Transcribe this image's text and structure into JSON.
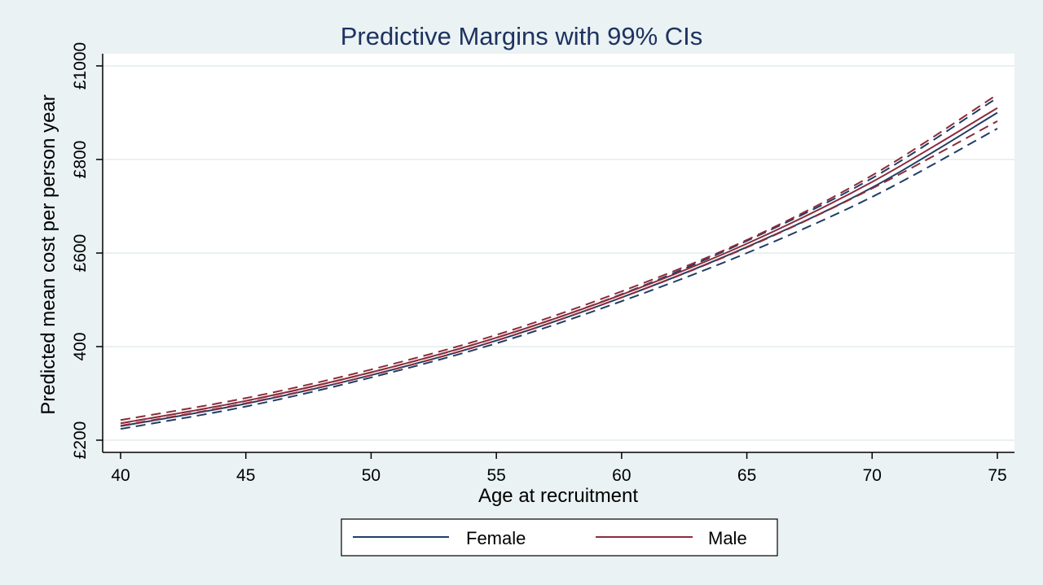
{
  "chart_data": {
    "type": "line",
    "title": "Predictive Margins with 99% CIs",
    "xlabel": "Age at recruitment",
    "ylabel": "Predicted mean cost per person year",
    "x": [
      40,
      45,
      50,
      55,
      60,
      65,
      70,
      75
    ],
    "x_ticks": [
      "40",
      "45",
      "50",
      "55",
      "60",
      "65",
      "70",
      "75"
    ],
    "y_ticks": [
      {
        "value": 200,
        "label": "£200"
      },
      {
        "value": 400,
        "label": "400"
      },
      {
        "value": 600,
        "label": "£600"
      },
      {
        "value": 800,
        "label": "£800"
      },
      {
        "value": 1000,
        "label": "£1000"
      }
    ],
    "xlim": [
      40,
      75
    ],
    "ylim": [
      200,
      1000
    ],
    "grid": true,
    "legend_position": "bottom",
    "series": [
      {
        "name": "Female",
        "color": "#1f3d66",
        "values": [
          230,
          278,
          339,
          413,
          505,
          613,
          740,
          900
        ],
        "ci_lower": [
          224,
          272,
          334,
          407,
          497,
          600,
          720,
          866
        ],
        "ci_upper": [
          236,
          284,
          345,
          419,
          512,
          626,
          760,
          932
        ]
      },
      {
        "name": "Male",
        "color": "#8c2c3a",
        "values": [
          236,
          284,
          345,
          419,
          511,
          620,
          752,
          910
        ],
        "ci_lower": [
          231,
          279,
          339,
          413,
          505,
          612,
          738,
          882
        ],
        "ci_upper": [
          243,
          290,
          351,
          425,
          518,
          628,
          766,
          939
        ]
      }
    ]
  }
}
